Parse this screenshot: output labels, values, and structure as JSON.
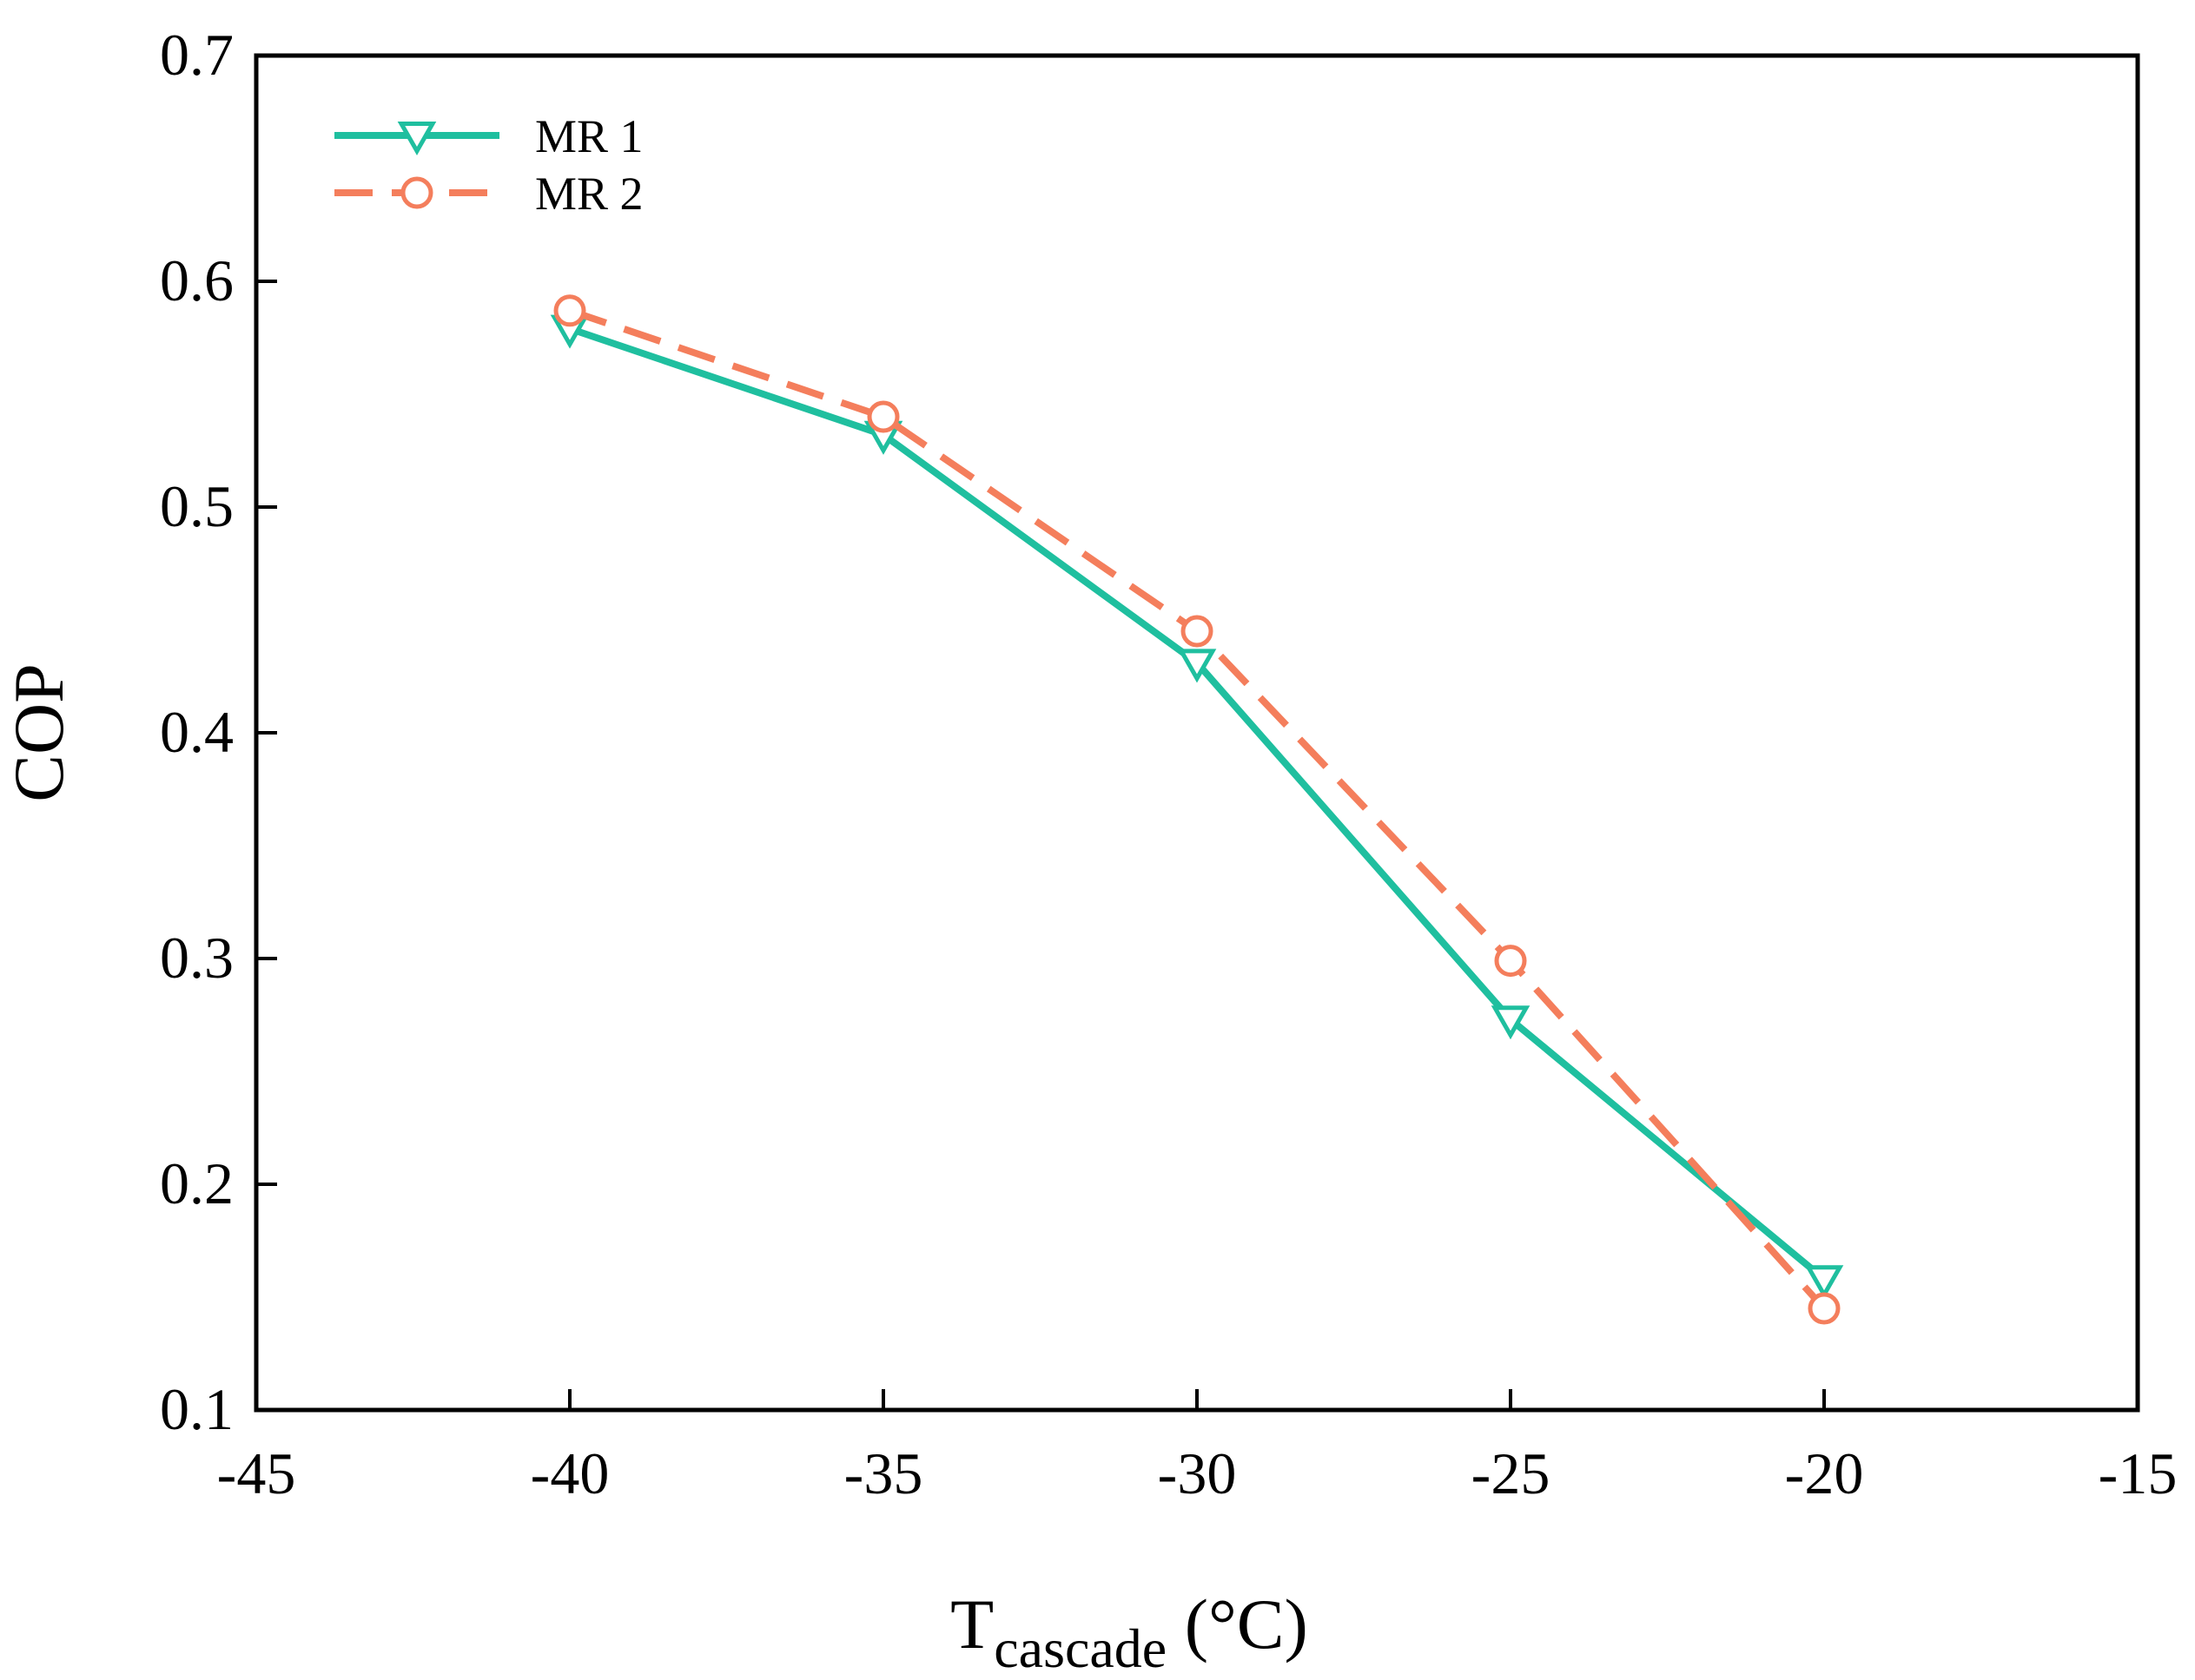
{
  "chart_data": {
    "type": "line",
    "title": "",
    "xlabel_main": "T",
    "xlabel_sub": "cascade",
    "xlabel_unit": " (°C)",
    "ylabel": "COP",
    "xlim": [
      -45,
      -15
    ],
    "ylim": [
      0.1,
      0.7
    ],
    "xticks": [
      -45,
      -40,
      -35,
      -30,
      -25,
      -20,
      -15
    ],
    "yticks": [
      0.1,
      0.2,
      0.3,
      0.4,
      0.5,
      0.6,
      0.7
    ],
    "xtick_labels": [
      "-45",
      "-40",
      "-35",
      "-30",
      "-25",
      "-20",
      "-15"
    ],
    "ytick_labels": [
      "0.1",
      "0.2",
      "0.3",
      "0.4",
      "0.5",
      "0.6",
      "0.7"
    ],
    "grid": false,
    "legend_position": "top-left",
    "x": [
      -40,
      -35,
      -30,
      -25,
      -20
    ],
    "series": [
      {
        "name": "MR 1",
        "values": [
          0.579,
          0.532,
          0.431,
          0.273,
          0.158
        ],
        "color": "#1fbf9f",
        "style": "solid",
        "marker": "triangle-down"
      },
      {
        "name": "MR 2",
        "values": [
          0.587,
          0.54,
          0.445,
          0.299,
          0.145
        ],
        "color": "#f47e5c",
        "style": "dashed",
        "marker": "circle"
      }
    ]
  }
}
